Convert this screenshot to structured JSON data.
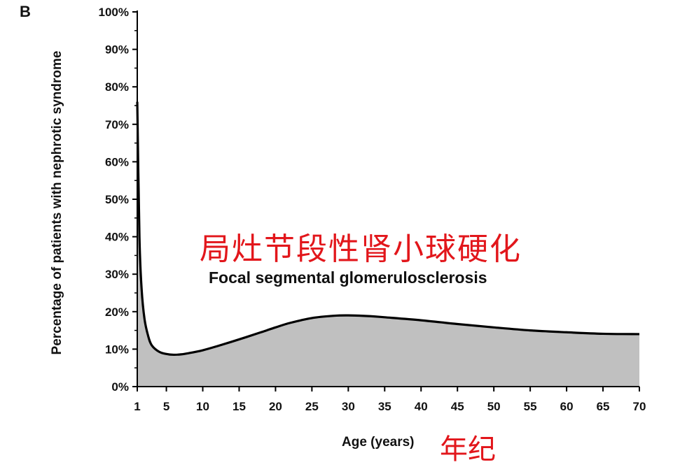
{
  "panel_label": "B",
  "chart_data": {
    "type": "area",
    "title": "",
    "xlabel": "Age (years)",
    "xlabel_annotation": "年纪",
    "ylabel": "Percentage of patients with nephrotic syndrome",
    "xlim": [
      1,
      70
    ],
    "ylim": [
      0,
      100
    ],
    "x_ticks": [
      1,
      5,
      10,
      15,
      20,
      25,
      30,
      35,
      40,
      45,
      50,
      55,
      60,
      65,
      70
    ],
    "x_tick_labels": [
      "1",
      "5",
      "10",
      "15",
      "20",
      "25",
      "30",
      "35",
      "40",
      "45",
      "50",
      "55",
      "60",
      "65",
      "70"
    ],
    "y_ticks": [
      0,
      10,
      20,
      30,
      40,
      50,
      60,
      70,
      80,
      90,
      100
    ],
    "y_tick_labels": [
      "0%",
      "10%",
      "20%",
      "30%",
      "40%",
      "50%",
      "60%",
      "70%",
      "80%",
      "90%",
      "100%"
    ],
    "grid": false,
    "fill_color": "#c0c0c0",
    "line_color": "#000000",
    "series": [
      {
        "name": "Focal segmental glomerulosclerosis",
        "name_annotation": "局灶节段性肾小球硬化",
        "x": [
          1,
          1.3,
          1.6,
          2,
          2.5,
          3,
          4,
          5,
          6,
          7,
          8,
          10,
          12,
          15,
          18,
          20,
          22,
          25,
          28,
          30,
          33,
          35,
          40,
          45,
          50,
          55,
          60,
          65,
          70
        ],
        "y": [
          76,
          40,
          26,
          18,
          13.5,
          11,
          9.3,
          8.7,
          8.5,
          8.6,
          8.9,
          9.7,
          10.8,
          12.6,
          14.5,
          15.8,
          17,
          18.3,
          18.9,
          19,
          18.8,
          18.5,
          17.7,
          16.7,
          15.8,
          15,
          14.5,
          14.1,
          14
        ]
      }
    ]
  }
}
